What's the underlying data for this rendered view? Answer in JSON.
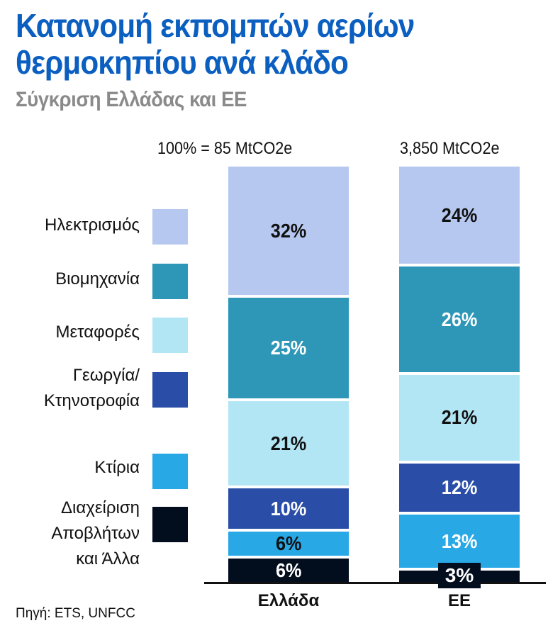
{
  "title_line1": "Κατανομή εκπομπών αερίων",
  "title_line2": "θερμοκηπίου ανά κλάδο",
  "subtitle": "Σύγκριση Ελλάδας και ΕΕ",
  "source": "Πηγή: ETS, UNFCC",
  "chart_data": {
    "type": "bar",
    "stacked": true,
    "normalized": true,
    "categories": [
      "Ελλάδα",
      "ΕΕ"
    ],
    "totals": [
      "100% = 85 MtCO2e",
      "3,850 MtCO2e"
    ],
    "series": [
      {
        "name": "Ηλεκτρισμός",
        "color": "#b7c8f0",
        "values": [
          32,
          24
        ],
        "labels": [
          "32%",
          "24%"
        ],
        "label_colors": [
          "#111111",
          "#111111"
        ]
      },
      {
        "name": "Βιομηχανία",
        "color": "#2e97b8",
        "values": [
          25,
          26
        ],
        "labels": [
          "25%",
          "26%"
        ],
        "label_colors": [
          "#ffffff",
          "#ffffff"
        ]
      },
      {
        "name": "Μεταφορές",
        "color": "#b3e6f5",
        "values": [
          21,
          21
        ],
        "labels": [
          "21%",
          "21%"
        ],
        "label_colors": [
          "#111111",
          "#111111"
        ]
      },
      {
        "name": "Γεωργία/ Κτηνοτροφία",
        "color": "#2a4ea8",
        "values": [
          10,
          12
        ],
        "labels": [
          "10%",
          "12%"
        ],
        "label_colors": [
          "#ffffff",
          "#ffffff"
        ]
      },
      {
        "name": "Κτίρια",
        "color": "#29a8e6",
        "values": [
          6,
          13
        ],
        "labels": [
          "6%",
          "13%"
        ],
        "label_colors": [
          "#111111",
          "#ffffff"
        ]
      },
      {
        "name": "Διαχείριση Αποβλήτων και Άλλα",
        "color": "#020d1e",
        "values": [
          6,
          3
        ],
        "labels": [
          "6%",
          "3%"
        ],
        "label_colors": [
          "#ffffff",
          "#ffffff"
        ]
      }
    ],
    "legend_position": "left",
    "grid": false
  }
}
